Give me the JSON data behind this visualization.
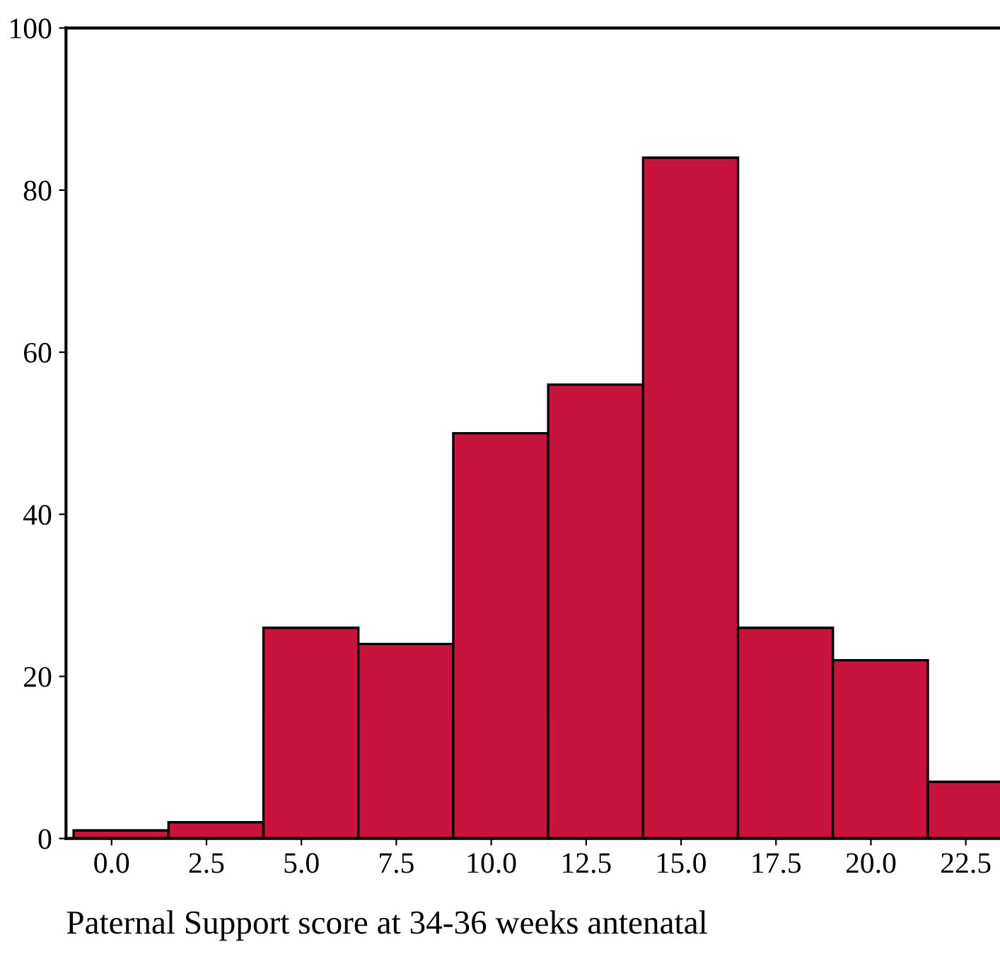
{
  "chart_data": {
    "type": "histogram",
    "xlabel": "Paternal Support score at 34-36 weeks antenatal",
    "bins": [
      -1,
      1.5,
      4,
      6.5,
      9,
      11.5,
      14,
      16.5,
      19,
      21.5,
      24
    ],
    "values": [
      1,
      2,
      26,
      24,
      50,
      56,
      84,
      26,
      22,
      7
    ],
    "color": "#c8143c",
    "xlim": [
      -1.2,
      23.4
    ],
    "xticks": [
      {
        "value": 0,
        "label": "0.0"
      },
      {
        "value": 2.5,
        "label": "2.5"
      },
      {
        "value": 5,
        "label": "5.0"
      },
      {
        "value": 7.5,
        "label": "7.5"
      },
      {
        "value": 10,
        "label": "10.0"
      },
      {
        "value": 12.5,
        "label": "12.5"
      },
      {
        "value": 15,
        "label": "15.0"
      },
      {
        "value": 17.5,
        "label": "17.5"
      },
      {
        "value": 20,
        "label": "20.0"
      },
      {
        "value": 22.5,
        "label": "22.5"
      }
    ],
    "ylim": [
      0,
      100
    ],
    "yticks": [
      0,
      20,
      40,
      60,
      80,
      100
    ],
    "grid": false
  }
}
